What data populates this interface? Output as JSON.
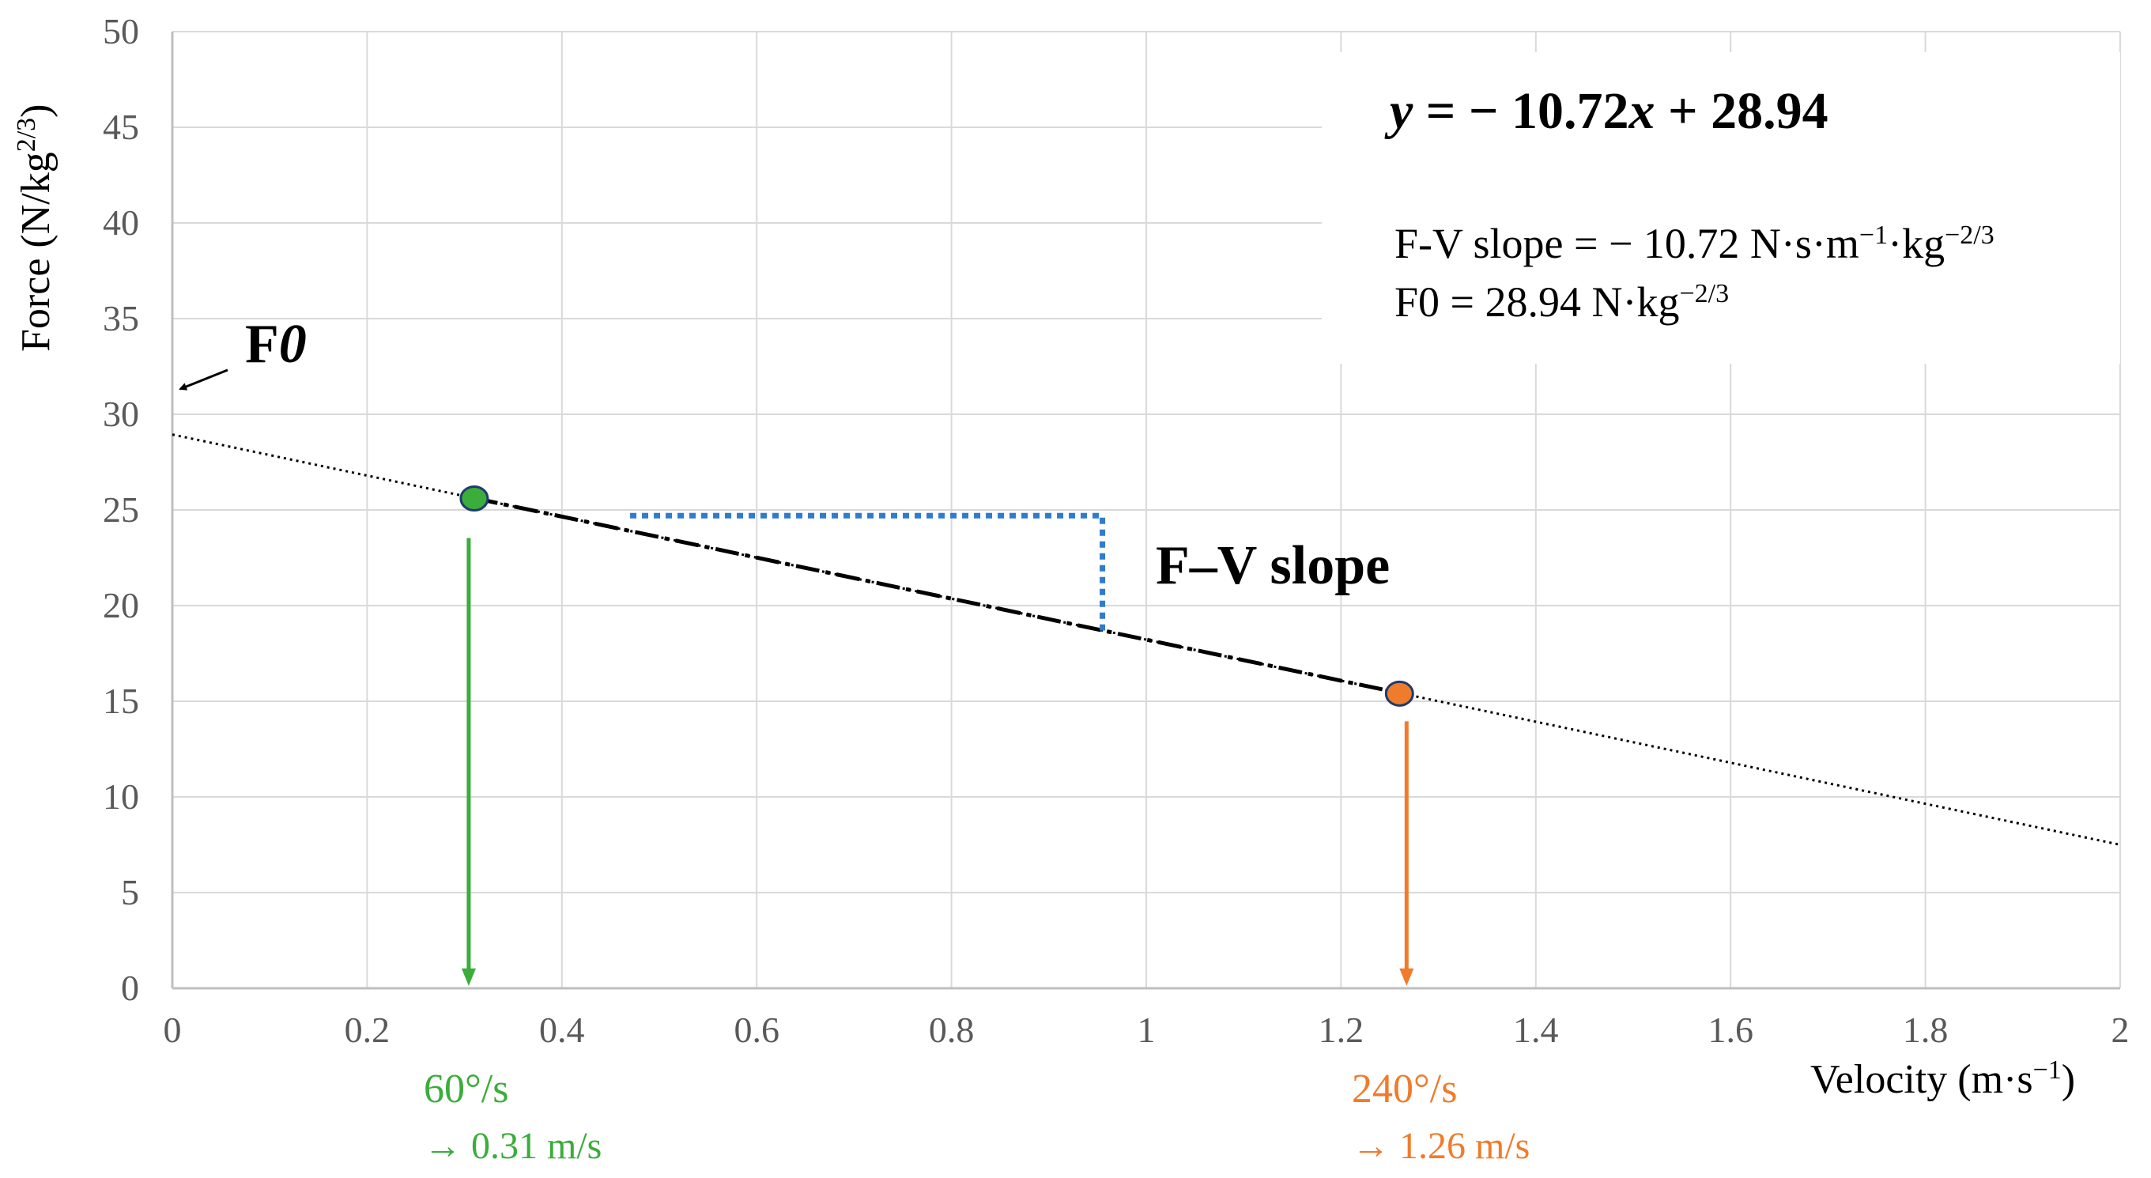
{
  "chart_data": {
    "type": "line",
    "title": "",
    "xlabel_main": "Velocity (m·s",
    "xlabel_sup": "−1",
    "xlabel_close": ")",
    "ylabel_main": "Force (N/kg",
    "ylabel_sup": "2/3",
    "ylabel_close": ")",
    "xlim": [
      0,
      2
    ],
    "ylim": [
      0,
      50
    ],
    "x_ticks": [
      0,
      0.2,
      0.4,
      0.6,
      0.8,
      1,
      1.2,
      1.4,
      1.6,
      1.8,
      2
    ],
    "x_tick_labels": [
      "0",
      "0.2",
      "0.4",
      "0.6",
      "0.8",
      "1",
      "1.2",
      "1.4",
      "1.6",
      "1.8",
      "2"
    ],
    "y_ticks": [
      0,
      5,
      10,
      15,
      20,
      25,
      30,
      35,
      40,
      45,
      50
    ],
    "y_tick_labels": [
      "0",
      "5",
      "10",
      "15",
      "20",
      "25",
      "30",
      "35",
      "40",
      "45",
      "50"
    ],
    "grid": true,
    "regression": {
      "slope": -10.72,
      "intercept": 28.94,
      "x_range": [
        0,
        2
      ]
    },
    "points": [
      {
        "name": "60°/s",
        "x": 0.31,
        "y": 25.6,
        "color": "#3aad3a",
        "speed_label": "60°/s",
        "velocity_label": "→  0.31 m/s"
      },
      {
        "name": "240°/s",
        "x": 1.26,
        "y": 15.4,
        "color": "#f07b2a",
        "speed_label": "240°/s",
        "velocity_label": "→   1.26 m/s"
      }
    ],
    "slope_triangle": {
      "x_start": 0.47,
      "x_end": 0.955,
      "y_top": 24.7,
      "y_bottom": 18.7,
      "color": "#2e7ccf"
    },
    "annotations": {
      "f0_label_prefix": "F",
      "f0_label_italic": "0",
      "fv_slope_label": "F–V slope",
      "equation_y": "y",
      "equation_mid": " = − 10.72",
      "equation_x": "x",
      "equation_end": " + 28.94",
      "slope_text_main": "F-V slope = − 10.72 N·s·m",
      "slope_text_sup1": "−1",
      "slope_text_mid": "·kg",
      "slope_text_sup2": "−2/3",
      "f0_text_main": "F0 = 28.94 N·kg",
      "f0_text_sup": "−2/3"
    },
    "colors": {
      "grid": "#d9d9d9",
      "axis": "#bfbfbf",
      "tick_text": "#595959",
      "label_text": "#000000"
    }
  }
}
